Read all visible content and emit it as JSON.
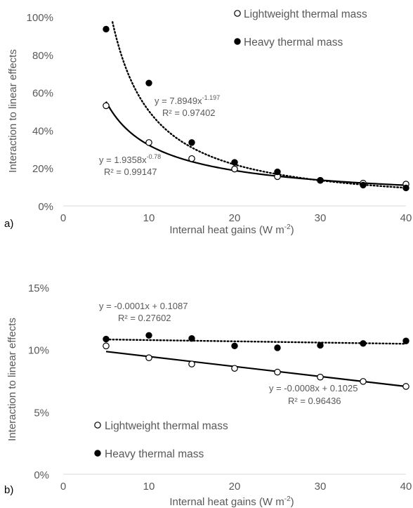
{
  "chart_data": [
    {
      "type": "scatter",
      "panel_label": "a)",
      "xlabel": "Internal heat gains (W m",
      "xlabel_sup": "-2",
      "xlabel_end": ")",
      "ylabel": "Interaction to linear effects",
      "xlim": [
        0,
        40
      ],
      "ylim": [
        0,
        1
      ],
      "x_ticks": [
        0,
        10,
        20,
        30,
        40
      ],
      "x_tick_labels": [
        "0",
        "10",
        "20",
        "30",
        "40"
      ],
      "y_ticks": [
        0,
        0.2,
        0.4,
        0.6,
        0.8,
        1.0
      ],
      "y_tick_labels": [
        "0%",
        "20%",
        "40%",
        "60%",
        "80%",
        "100%"
      ],
      "legend_position": "top-right",
      "series": [
        {
          "name": "Lightweight thermal mass",
          "marker": "open-circle",
          "x": [
            5,
            10,
            15,
            20,
            25,
            30,
            35,
            40
          ],
          "y": [
            0.53,
            0.335,
            0.25,
            0.195,
            0.155,
            0.135,
            0.12,
            0.115
          ],
          "trendline": {
            "kind": "power",
            "a": 1.9358,
            "b": -0.78,
            "style": "solid",
            "equation": "y = 1.9358x",
            "exponent": "-0.78",
            "r2": "R² = 0.99147"
          }
        },
        {
          "name": "Heavy thermal mass",
          "marker": "filled-circle",
          "x": [
            5,
            10,
            15,
            20,
            25,
            30,
            35,
            40
          ],
          "y": [
            0.935,
            0.65,
            0.335,
            0.23,
            0.18,
            0.135,
            0.11,
            0.095
          ],
          "trendline": {
            "kind": "power",
            "a": 7.8949,
            "b": -1.197,
            "style": "dotted",
            "equation": "y = 7.8949x",
            "exponent": "-1.197",
            "r2": "R² = 0.97402"
          }
        }
      ]
    },
    {
      "type": "scatter",
      "panel_label": "b)",
      "xlabel": "Internal heat gains (W m",
      "xlabel_sup": "-2",
      "xlabel_end": ")",
      "ylabel": "Interaction to linear effects",
      "xlim": [
        0,
        40
      ],
      "ylim": [
        0,
        0.15
      ],
      "x_ticks": [
        0,
        10,
        20,
        30,
        40
      ],
      "x_tick_labels": [
        "0",
        "10",
        "20",
        "30",
        "40"
      ],
      "y_ticks": [
        0,
        0.05,
        0.1,
        0.15
      ],
      "y_tick_labels": [
        "0%",
        "5%",
        "10%",
        "15%"
      ],
      "legend_position": "bottom-left",
      "series": [
        {
          "name": "Lightweight thermal mass",
          "marker": "open-circle",
          "x": [
            5,
            10,
            15,
            20,
            25,
            30,
            35,
            40
          ],
          "y": [
            0.103,
            0.0935,
            0.0885,
            0.085,
            0.082,
            0.078,
            0.0745,
            0.0705
          ],
          "trendline": {
            "kind": "linear",
            "a": -0.0008,
            "b": 0.1025,
            "style": "solid",
            "equation": "y = -0.0008x + 0.1025",
            "r2": "R² = 0.96436"
          }
        },
        {
          "name": "Heavy thermal mass",
          "marker": "filled-circle",
          "x": [
            5,
            10,
            15,
            20,
            25,
            30,
            35,
            40
          ],
          "y": [
            0.1085,
            0.1115,
            0.109,
            0.103,
            0.1015,
            0.1035,
            0.105,
            0.107
          ],
          "trendline": {
            "kind": "linear",
            "a": -0.0001,
            "b": 0.1087,
            "style": "dotted",
            "equation": "y = -0.0001x + 0.1087",
            "r2": "R² = 0.27602"
          }
        }
      ]
    }
  ]
}
